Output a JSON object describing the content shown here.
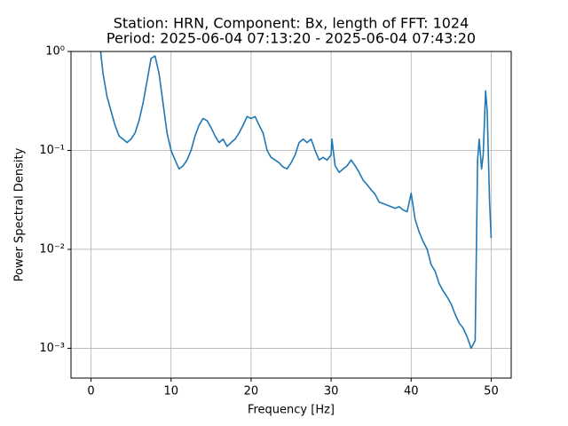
{
  "chart_data": {
    "type": "line",
    "title": "Station: HRN, Component: Bx, length of FFT: 1024",
    "subtitle": "Period: 2025-06-04 07:13:20 - 2025-06-04 07:43:20",
    "x_label": "Frequency [Hz]",
    "y_label": "Power Spectral Density",
    "yscale": "log",
    "grid": true,
    "xlim": [
      -2.5,
      52.5
    ],
    "ylim": [
      0.0005,
      1
    ],
    "xticks": [
      0,
      10,
      20,
      30,
      40,
      50
    ],
    "yticks": [
      {
        "value": 0.001,
        "label": "10⁻³"
      },
      {
        "value": 0.01,
        "label": "10⁻²"
      },
      {
        "value": 0.1,
        "label": "10⁻¹"
      },
      {
        "value": 1,
        "label": "10⁰"
      }
    ],
    "x": [
      1.2,
      1.5,
      2,
      2.5,
      3,
      3.5,
      4,
      4.5,
      5,
      5.5,
      6,
      6.5,
      7,
      7.5,
      8,
      8.5,
      9,
      9.5,
      10,
      10.5,
      11,
      11.5,
      12,
      12.5,
      13,
      13.5,
      14,
      14.5,
      15,
      15.5,
      16,
      16.5,
      17,
      17.5,
      18,
      18.5,
      19,
      19.5,
      20,
      20.5,
      21,
      21.5,
      22,
      22.5,
      23,
      23.5,
      24,
      24.5,
      25,
      25.5,
      26,
      26.5,
      27,
      27.5,
      28,
      28.5,
      29,
      29.5,
      30,
      30.1,
      30.5,
      31,
      31.5,
      32,
      32.5,
      33,
      33.5,
      34,
      34.5,
      35,
      35.5,
      36,
      36.5,
      37,
      37.5,
      38,
      38.5,
      39,
      39.5,
      40,
      40.5,
      41,
      41.5,
      42,
      42.5,
      43,
      43.5,
      44,
      44.5,
      45,
      45.5,
      46,
      46.5,
      47,
      47.5,
      48,
      48.3,
      48.5,
      48.8,
      49,
      49.3,
      49.5,
      49.8,
      50
    ],
    "series": [
      {
        "name": "PSD",
        "color": "#1f77b4",
        "values": [
          1.0,
          0.6,
          0.35,
          0.25,
          0.18,
          0.14,
          0.13,
          0.12,
          0.13,
          0.15,
          0.2,
          0.3,
          0.5,
          0.85,
          0.9,
          0.6,
          0.3,
          0.15,
          0.1,
          0.08,
          0.065,
          0.07,
          0.08,
          0.1,
          0.14,
          0.18,
          0.21,
          0.2,
          0.17,
          0.14,
          0.12,
          0.13,
          0.11,
          0.12,
          0.13,
          0.15,
          0.18,
          0.22,
          0.21,
          0.22,
          0.18,
          0.15,
          0.1,
          0.085,
          0.08,
          0.075,
          0.068,
          0.065,
          0.075,
          0.09,
          0.12,
          0.13,
          0.12,
          0.13,
          0.1,
          0.08,
          0.085,
          0.08,
          0.09,
          0.13,
          0.07,
          0.06,
          0.065,
          0.07,
          0.08,
          0.07,
          0.06,
          0.05,
          0.045,
          0.04,
          0.036,
          0.03,
          0.029,
          0.028,
          0.027,
          0.026,
          0.027,
          0.025,
          0.024,
          0.037,
          0.02,
          0.015,
          0.012,
          0.01,
          0.007,
          0.006,
          0.0045,
          0.0038,
          0.0033,
          0.0028,
          0.0022,
          0.0018,
          0.0016,
          0.0013,
          0.001,
          0.0012,
          0.08,
          0.13,
          0.065,
          0.09,
          0.4,
          0.25,
          0.03,
          0.013
        ]
      }
    ]
  }
}
